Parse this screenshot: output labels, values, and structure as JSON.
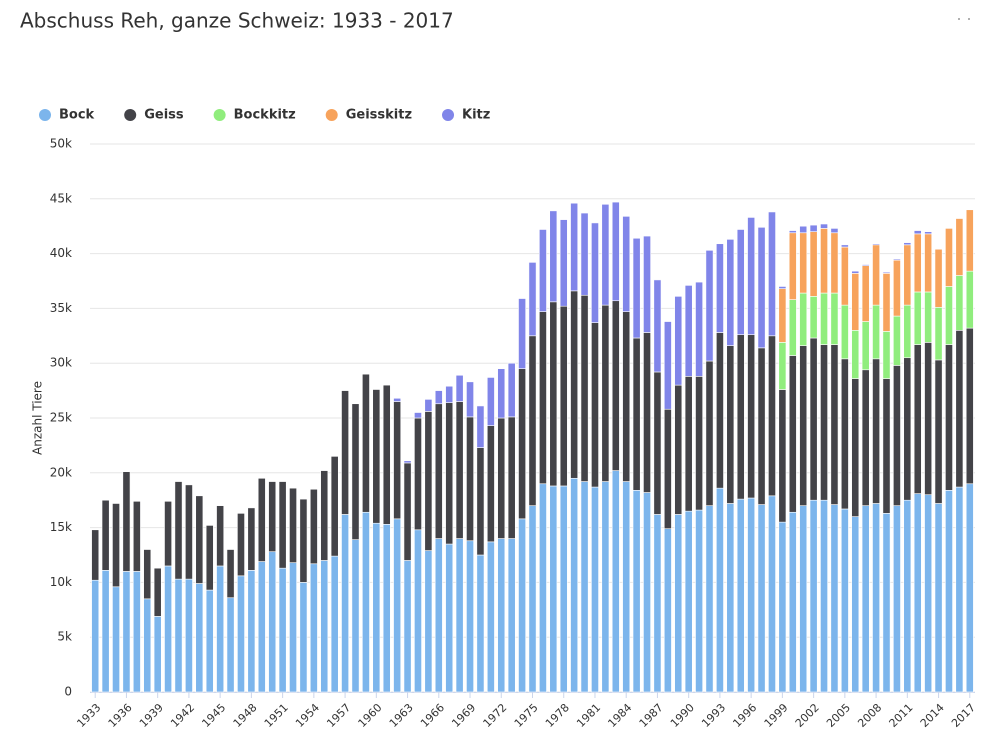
{
  "chart_data": {
    "type": "stacked_bar",
    "title": "Abschuss Reh, ganze Schweiz: 1933 - 2017",
    "y_label": "Anzahl Tiere",
    "categories": [
      "1933",
      null,
      null,
      "1936",
      null,
      null,
      "1939",
      null,
      null,
      "1942",
      null,
      null,
      "1945",
      null,
      null,
      "1948",
      null,
      null,
      "1951",
      null,
      null,
      "1954",
      null,
      null,
      "1957",
      null,
      null,
      "1960",
      null,
      null,
      "1963",
      null,
      null,
      "1966",
      null,
      null,
      "1969",
      null,
      null,
      "1972",
      null,
      null,
      "1975",
      null,
      null,
      "1978",
      null,
      null,
      "1981",
      null,
      null,
      "1984",
      null,
      null,
      "1987",
      null,
      null,
      "1990",
      null,
      null,
      "1993",
      null,
      null,
      "1996",
      null,
      null,
      "1999",
      null,
      null,
      "2002",
      null,
      null,
      "2005",
      null,
      null,
      "2008",
      null,
      null,
      "2011",
      null,
      null,
      "2014",
      null,
      null,
      "2017"
    ],
    "series": [
      {
        "name": "Bock",
        "color": "#7cb5ec",
        "values": [
          10200,
          11100,
          9600,
          11000,
          11000,
          8500,
          6900,
          11500,
          10300,
          10300,
          9900,
          9300,
          11500,
          8600,
          10600,
          11100,
          11900,
          12800,
          11300,
          11800,
          10000,
          11700,
          12000,
          12400,
          16200,
          13900,
          16400,
          15400,
          15300,
          15800,
          12000,
          14800,
          12900,
          14000,
          13500,
          14000,
          13800,
          12500,
          13700,
          14000,
          14000,
          15800,
          17000,
          19000,
          18800,
          18800,
          19500,
          19200,
          18700,
          19200,
          20200,
          19200,
          18400,
          18200,
          16200,
          14900,
          16200,
          16500,
          16600,
          17000,
          18600,
          17200,
          17600,
          17700,
          17100,
          17900,
          15500,
          16400,
          17000,
          17500,
          17500,
          17100,
          16700,
          16000,
          17000,
          17200,
          16300,
          17000,
          17500,
          18100,
          18000,
          17200,
          18400,
          18700,
          19000
        ]
      },
      {
        "name": "Geiss",
        "color": "#434348",
        "values": [
          4600,
          6400,
          7600,
          9100,
          6400,
          4500,
          4400,
          5900,
          8900,
          8600,
          8000,
          5900,
          5500,
          4400,
          5700,
          5700,
          7600,
          6400,
          7900,
          6800,
          7600,
          6800,
          8200,
          9100,
          11300,
          12400,
          12600,
          12200,
          12700,
          10700,
          8900,
          10200,
          12700,
          12300,
          12900,
          12500,
          11300,
          9800,
          10600,
          11000,
          11100,
          13700,
          15500,
          15700,
          16800,
          16400,
          17100,
          17000,
          15000,
          16100,
          15500,
          15500,
          13900,
          14600,
          13000,
          10900,
          11800,
          12300,
          12200,
          13200,
          14200,
          14400,
          15000,
          14900,
          14300,
          14600,
          12100,
          14300,
          14600,
          14800,
          14200,
          14600,
          13700,
          12600,
          12400,
          13200,
          12300,
          12800,
          13000,
          13600,
          13900,
          13100,
          13300,
          14300,
          14200
        ]
      },
      {
        "name": "Bockkitz",
        "color": "#90ed7d",
        "values": [
          null,
          null,
          null,
          null,
          null,
          null,
          null,
          null,
          null,
          null,
          null,
          null,
          null,
          null,
          null,
          null,
          null,
          null,
          null,
          null,
          null,
          null,
          null,
          null,
          null,
          null,
          null,
          null,
          null,
          null,
          null,
          null,
          null,
          null,
          null,
          null,
          null,
          null,
          null,
          null,
          null,
          null,
          null,
          null,
          null,
          null,
          null,
          null,
          null,
          null,
          null,
          null,
          null,
          null,
          null,
          null,
          null,
          null,
          null,
          null,
          null,
          null,
          null,
          null,
          null,
          null,
          4300,
          5100,
          4800,
          3800,
          4700,
          4700,
          4900,
          4400,
          4400,
          4900,
          4300,
          4500,
          4800,
          4800,
          4600,
          4800,
          5300,
          5000,
          5200
        ]
      },
      {
        "name": "Geisskitz",
        "color": "#f7a35c",
        "values": [
          null,
          null,
          null,
          null,
          null,
          null,
          null,
          null,
          null,
          null,
          null,
          null,
          null,
          null,
          null,
          null,
          null,
          null,
          null,
          null,
          null,
          null,
          null,
          null,
          null,
          null,
          null,
          null,
          null,
          null,
          null,
          null,
          null,
          null,
          null,
          null,
          null,
          null,
          null,
          null,
          null,
          null,
          null,
          null,
          null,
          null,
          null,
          null,
          null,
          null,
          null,
          null,
          null,
          null,
          null,
          null,
          null,
          null,
          null,
          null,
          null,
          null,
          null,
          null,
          null,
          null,
          4900,
          6100,
          5500,
          5900,
          5900,
          5500,
          5300,
          5200,
          5100,
          5500,
          5300,
          5100,
          5500,
          5300,
          5300,
          5300,
          5300,
          5200,
          5600
        ]
      },
      {
        "name": "Kitz",
        "color": "#8085e9",
        "values": [
          null,
          null,
          null,
          null,
          null,
          null,
          null,
          null,
          null,
          null,
          null,
          null,
          null,
          null,
          null,
          null,
          null,
          null,
          null,
          null,
          null,
          null,
          null,
          null,
          null,
          null,
          null,
          null,
          null,
          300,
          200,
          500,
          1100,
          1200,
          1500,
          2400,
          3200,
          3800,
          4400,
          4500,
          4900,
          6400,
          6700,
          7500,
          8300,
          7900,
          8000,
          7500,
          9100,
          9200,
          9000,
          8700,
          9100,
          8800,
          8400,
          8000,
          8100,
          8300,
          8600,
          10100,
          8100,
          9700,
          9600,
          10700,
          11000,
          11300,
          200,
          200,
          600,
          600,
          400,
          400,
          200,
          200,
          100,
          100,
          100,
          100,
          200,
          300,
          200,
          null,
          null,
          null,
          null
        ]
      }
    ],
    "ylim": [
      0,
      50000
    ],
    "yticks": [
      0,
      {
        "value": 5000,
        "label": "5k"
      },
      {
        "value": 10000,
        "label": "10k"
      },
      {
        "value": 15000,
        "label": "15k"
      },
      {
        "value": 20000,
        "label": "20k"
      },
      {
        "value": 25000,
        "label": "25k"
      },
      {
        "value": 30000,
        "label": "30k"
      },
      {
        "value": 35000,
        "label": "35k"
      },
      {
        "value": 40000,
        "label": "40k"
      },
      {
        "value": 45000,
        "label": "45k"
      },
      {
        "value": 50000,
        "label": "50k"
      }
    ],
    "grid": true,
    "legend": "top-left"
  }
}
